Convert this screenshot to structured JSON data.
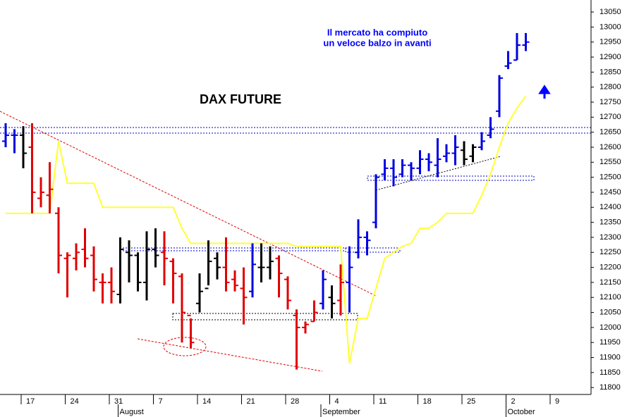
{
  "chart_data": {
    "type": "ohlc",
    "title": "DAX FUTURE",
    "annotation": [
      "Il mercato ha compiuto",
      "un veloce balzo in avanti"
    ],
    "categories": [
      null,
      null,
      "17",
      null,
      null,
      null,
      null,
      "24",
      null,
      null,
      null,
      null,
      "31",
      null,
      null,
      null,
      null,
      "7",
      null,
      null,
      null,
      null,
      "14",
      null,
      null,
      null,
      null,
      "21",
      null,
      null,
      null,
      null,
      "28",
      null,
      null,
      null,
      null,
      "4",
      null,
      null,
      null,
      null,
      "11",
      null,
      null,
      null,
      null,
      "18",
      null,
      null,
      null,
      null,
      "25",
      null,
      null,
      null,
      null,
      "2",
      null,
      null,
      null,
      null,
      "9",
      null,
      null,
      null,
      null
    ],
    "months": [
      null,
      null,
      null,
      null,
      null,
      null,
      null,
      null,
      null,
      null,
      null,
      null,
      null,
      "August",
      null,
      null,
      null,
      null,
      null,
      null,
      null,
      null,
      null,
      null,
      null,
      null,
      null,
      null,
      null,
      null,
      null,
      null,
      null,
      null,
      null,
      null,
      "September",
      null,
      null,
      null,
      null,
      null,
      null,
      null,
      null,
      null,
      null,
      null,
      null,
      null,
      null,
      null,
      null,
      null,
      null,
      null,
      null,
      "October",
      null,
      null,
      null,
      null,
      null,
      null,
      null,
      null,
      null
    ],
    "open": [
      12620,
      12640,
      12640,
      12600,
      12430,
      12440,
      12380,
      12230,
      12230,
      12260,
      12240,
      12150,
      12150,
      12110,
      12250,
      12240,
      12150,
      12260,
      12250,
      12220,
      12170,
      12040,
      12080,
      12130,
      12230,
      12200,
      12160,
      12130,
      12120,
      12200,
      12200,
      12230,
      12160,
      12040,
      12000,
      12020,
      12080,
      12100,
      12090,
      12150,
      12250,
      12300,
      12350,
      12510,
      12530,
      12510,
      12540,
      12530,
      12560,
      12540,
      12570,
      12580,
      12590,
      12570,
      12600,
      12640,
      12720,
      12870,
      12890,
      12940,
      null,
      null,
      null,
      null,
      null,
      null,
      null
    ],
    "high": [
      12680,
      12660,
      12670,
      12680,
      12500,
      12550,
      12400,
      12250,
      12280,
      12330,
      12270,
      12180,
      12200,
      12300,
      12290,
      12250,
      12320,
      12330,
      12320,
      12230,
      12180,
      12030,
      12180,
      12290,
      12250,
      12300,
      12190,
      12200,
      12280,
      12280,
      12270,
      12240,
      12170,
      12060,
      12020,
      12090,
      12190,
      12140,
      12210,
      12270,
      12360,
      12320,
      12510,
      12560,
      12560,
      12560,
      12550,
      12590,
      12580,
      12630,
      12610,
      12640,
      12620,
      12610,
      12650,
      12700,
      12840,
      12920,
      12980,
      12980,
      null,
      null,
      null,
      null,
      null,
      null,
      null
    ],
    "low": [
      12600,
      12580,
      12530,
      12380,
      12400,
      12380,
      12180,
      12100,
      12190,
      12200,
      12120,
      12080,
      12080,
      12080,
      12150,
      12120,
      12090,
      12200,
      12140,
      12080,
      11950,
      11930,
      12050,
      12140,
      12160,
      12120,
      12120,
      12010,
      12100,
      12150,
      12160,
      12100,
      12060,
      11860,
      11980,
      12020,
      12060,
      12030,
      12040,
      12050,
      12230,
      12240,
      12330,
      12490,
      12470,
      12500,
      12490,
      12510,
      12520,
      12500,
      12550,
      12540,
      12540,
      12550,
      12590,
      12630,
      12700,
      12860,
      12890,
      12920,
      null,
      null,
      null,
      null,
      null,
      null,
      null
    ],
    "close": [
      12640,
      12640,
      12580,
      12450,
      12450,
      12460,
      12240,
      12240,
      12250,
      12230,
      12160,
      12150,
      12120,
      12260,
      12240,
      12150,
      12260,
      12240,
      12230,
      12180,
      12050,
      11950,
      12120,
      12220,
      12200,
      12150,
      12140,
      12100,
      12210,
      12200,
      12220,
      12180,
      12090,
      12000,
      12010,
      12050,
      12160,
      12080,
      12150,
      12200,
      12300,
      12290,
      12500,
      12530,
      12500,
      12540,
      12530,
      12560,
      12550,
      12560,
      12580,
      12600,
      12560,
      12600,
      12620,
      12660,
      12830,
      12880,
      12940,
      12950,
      null,
      null,
      null,
      null,
      null,
      null,
      null
    ],
    "colors": [
      "#0000e0",
      "#0000e0",
      "#000000",
      "#e00000",
      "#e00000",
      "#e00000",
      "#e00000",
      "#e00000",
      "#e00000",
      "#e00000",
      "#e00000",
      "#e00000",
      "#e00000",
      "#000000",
      "#000000",
      "#000000",
      "#000000",
      "#000000",
      "#e00000",
      "#e00000",
      "#e00000",
      "#e00000",
      "#000000",
      "#000000",
      "#000000",
      "#e00000",
      "#e00000",
      "#e00000",
      "#0000e0",
      "#000000",
      "#000000",
      "#e00000",
      "#e00000",
      "#e00000",
      "#e00000",
      "#e00000",
      "#0000e0",
      "#000000",
      "#e00000",
      "#0000e0",
      "#0000e0",
      "#0000e0",
      "#0000e0",
      "#0000e0",
      "#0000e0",
      "#0000e0",
      "#0000e0",
      "#0000e0",
      "#0000e0",
      "#0000e0",
      "#0000e0",
      "#0000e0",
      "#000000",
      "#000000",
      "#0000e0",
      "#0000e0",
      "#0000e0",
      "#0000e0",
      "#0000e0",
      "#0000e0",
      null,
      null,
      null,
      null,
      null,
      null,
      null
    ],
    "line": {
      "color": "#ffff33",
      "values": [
        12380,
        12380,
        12380,
        12380,
        12380,
        12380,
        12620,
        12480,
        12480,
        12480,
        12480,
        12400,
        12400,
        12400,
        12400,
        12400,
        12400,
        12400,
        12400,
        12400,
        12330,
        12280,
        12280,
        12280,
        12280,
        12280,
        12280,
        12280,
        12280,
        12280,
        12280,
        12280,
        12280,
        12270,
        12270,
        12270,
        12270,
        12270,
        12270,
        11880,
        12030,
        12030,
        12130,
        12230,
        12250,
        12270,
        12280,
        12330,
        12330,
        12350,
        12380,
        12380,
        12380,
        12380,
        12440,
        12510,
        12600,
        12680,
        12730,
        12770,
        null,
        null,
        null,
        null,
        null,
        null,
        null
      ]
    },
    "ylim": [
      11777,
      13090
    ],
    "yticks": [
      11800,
      11850,
      11900,
      11950,
      12000,
      12050,
      12100,
      12150,
      12200,
      12250,
      12300,
      12350,
      12400,
      12450,
      12500,
      12550,
      12600,
      12650,
      12700,
      12750,
      12800,
      12850,
      12900,
      12950,
      13000,
      13050
    ]
  }
}
